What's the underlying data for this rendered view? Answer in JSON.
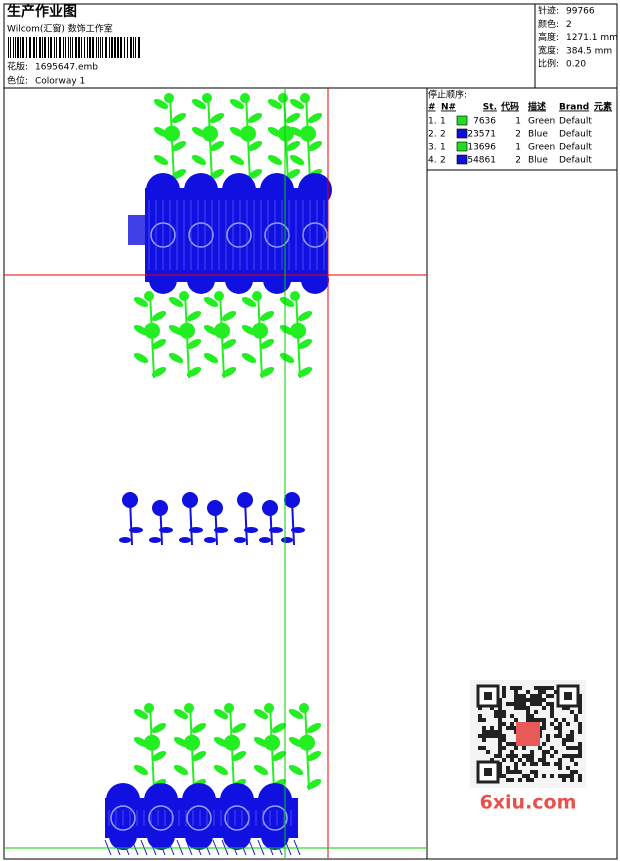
{
  "header": {
    "title": "生产作业图",
    "studio": "Wilcom(汇窗) 数饰工作室",
    "design_file": {
      "label": "花版:",
      "value": "1695647.emb"
    },
    "colorway": {
      "label": "色位:",
      "value": "Colorway 1"
    }
  },
  "stats": [
    {
      "label": "针迹:",
      "value": "99766"
    },
    {
      "label": "颜色:",
      "value": "2"
    },
    {
      "label": "高度:",
      "value": "1271.1 mm"
    },
    {
      "label": "宽度:",
      "value": "384.5 mm"
    },
    {
      "label": "比例:",
      "value": "0.20"
    }
  ],
  "stop_sequence": {
    "title": "停止顺序:",
    "columns": [
      "#",
      "N#",
      "St.",
      "代码",
      "描述",
      "Brand",
      "元素"
    ],
    "rows": [
      {
        "index": "1.",
        "needle": 1,
        "color": "#22dd22",
        "stitches": 7636,
        "code": 1,
        "description": "Green",
        "brand": "Default"
      },
      {
        "index": "2.",
        "needle": 2,
        "color": "#1010d8",
        "stitches": 23571,
        "code": 2,
        "description": "Blue",
        "brand": "Default"
      },
      {
        "index": "3.",
        "needle": 1,
        "color": "#22dd22",
        "stitches": 13696,
        "code": 1,
        "description": "Green",
        "brand": "Default"
      },
      {
        "index": "4.",
        "needle": 2,
        "color": "#1010d8",
        "stitches": 54861,
        "code": 2,
        "description": "Blue",
        "brand": "Default"
      }
    ]
  },
  "watermark": "6xiu.com"
}
